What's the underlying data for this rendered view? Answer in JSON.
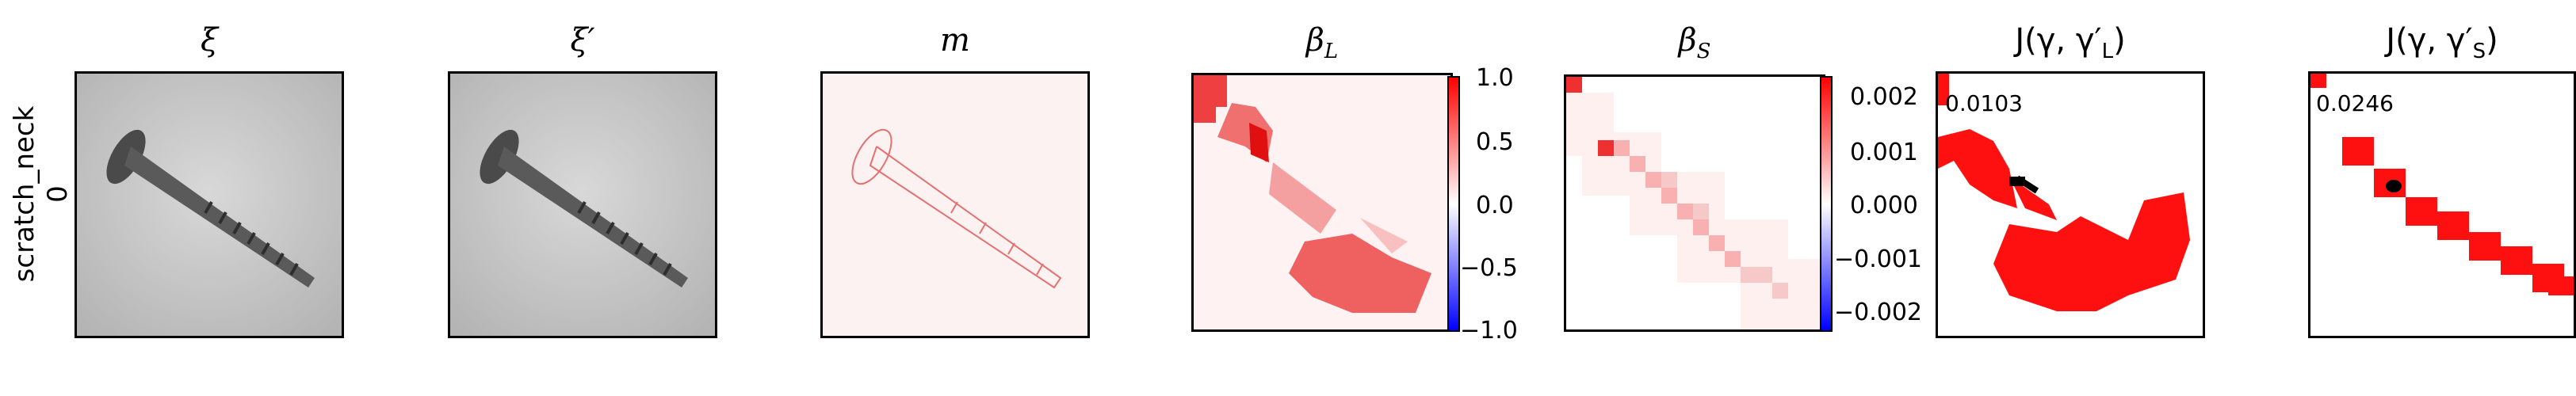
{
  "row_label": {
    "line1": "scratch_neck",
    "line2": "0"
  },
  "panels": [
    {
      "title": "ξ"
    },
    {
      "title": "ξ′"
    },
    {
      "title": "m"
    },
    {
      "title": "β",
      "sub": "L"
    },
    {
      "title": "β",
      "sub": "S"
    },
    {
      "title": "J(γ, γ′",
      "sub": "L",
      "tail": ")"
    },
    {
      "title": "J(γ, γ′",
      "sub": "S",
      "tail": ")"
    }
  ],
  "colorbar_L": {
    "ticks": [
      "1.0",
      "0.5",
      "0.0",
      "−0.5",
      "−1.0"
    ]
  },
  "colorbar_S": {
    "ticks": [
      "0.002",
      "0.001",
      "0.000",
      "−0.001",
      "−0.002"
    ]
  },
  "scores": {
    "L": "0.0103",
    "S": "0.0246"
  },
  "colors": {
    "positive": "#ff0000",
    "negative": "#0000ff",
    "marker": "#000000"
  }
}
